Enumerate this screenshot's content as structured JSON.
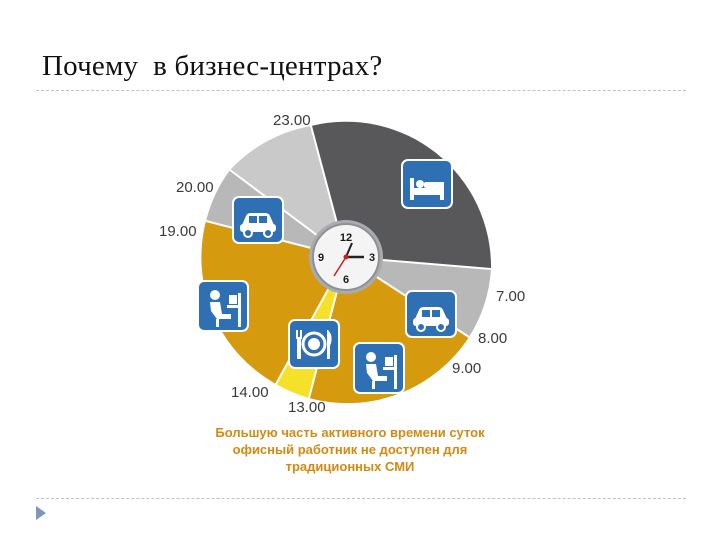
{
  "slide": {
    "title": "Почему  в бизнес-центрах?"
  },
  "diagram": {
    "time_labels": [
      "23.00",
      "20.00",
      "19.00",
      "14.00",
      "13.00",
      "9.00",
      "8.00",
      "7.00"
    ],
    "clock_numbers": [
      "12",
      "3",
      "6",
      "9"
    ],
    "segments": [
      {
        "activity": "sleep",
        "icon": "bed-icon",
        "start": "23.00",
        "end": "7.00",
        "color": "#58585a"
      },
      {
        "activity": "commute-morning",
        "icon": "car-icon",
        "start": "7.00",
        "end": "9.00",
        "color": "#b8b8b8"
      },
      {
        "activity": "work-afternoon",
        "icon": "office-worker-icon",
        "start": "9.00",
        "end": "13.00",
        "color": "#d69a0e"
      },
      {
        "activity": "lunch",
        "icon": "plate-cutlery-icon",
        "start": "13.00",
        "end": "14.00",
        "color": "#f6e12a"
      },
      {
        "activity": "work-morning",
        "icon": "office-worker-icon",
        "start": "14.00",
        "end": "19.00",
        "color": "#d69a0e"
      },
      {
        "activity": "commute-evening",
        "icon": "car-icon",
        "start": "19.00",
        "end": "20.00",
        "color": "#b8b8b8"
      },
      {
        "activity": "evening",
        "icon": "",
        "start": "20.00",
        "end": "23.00",
        "color": "#c9c9c9"
      }
    ],
    "icon_tile_color": "#2f6fb3"
  },
  "caption": {
    "line1": "Большую часть активного времени суток",
    "line2": "офисный работник не доступен для",
    "line3": "традиционных СМИ"
  },
  "colors": {
    "caption": "#d38a12",
    "title": "#111111",
    "rule": "#b9c3cf"
  }
}
